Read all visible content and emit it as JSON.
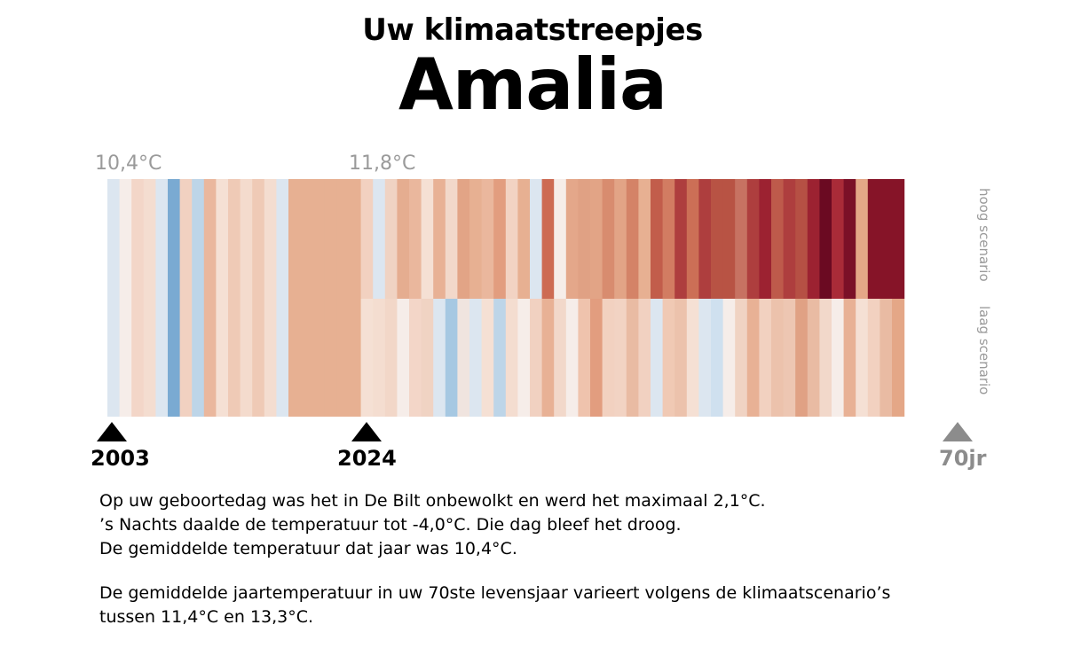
{
  "header": {
    "subtitle": "Uw klimaatstreepjes",
    "name": "Amalia"
  },
  "labels": {
    "temp_birth": "10,4°C",
    "temp_now": "11,8°C",
    "high_scenario": "hoog scenario",
    "low_scenario": "laag scenario",
    "year_birth": "2003",
    "year_now": "2024",
    "age_end": "70jr"
  },
  "text": {
    "line1": "Op uw geboortedag was het in De Bilt onbewolkt en werd het maximaal 2,1°C.",
    "line2": "’s Nachts daalde de temperatuur tot -4,0°C. Die dag bleef het droog.",
    "line3": "De gemiddelde temperatuur dat jaar was 10,4°C.",
    "line4": "De gemiddelde jaartemperatuur in uw 70ste levensjaar varieert volgens de klimaatscenario’s",
    "line5": "tussen 11,4°C en 13,3°C."
  },
  "colors": {
    "triangle_past": "#000000",
    "triangle_future": "#8c8c8c",
    "label_grey": "#9a9a9a"
  },
  "chart_data": {
    "type": "heatmap",
    "description_scale": "annual mean temperature stripes",
    "past": {
      "start_year": 2003,
      "end_year": 2024,
      "colors": [
        "#dce6f0",
        "#f6ede9",
        "#f3d6c8",
        "#f4ddd0",
        "#dce6f0",
        "#7aaad2",
        "#f1d1c1",
        "#bdd5e8",
        "#eab79d",
        "#f5e0d4",
        "#efcab6",
        "#f4dbcd",
        "#efcab6",
        "#f4ddd0",
        "#dce6f0",
        "#e7b092",
        "#e7b092",
        "#e7b092",
        "#e7b092",
        "#e7b092",
        "#e7b092"
      ]
    },
    "future_high": {
      "label": "hoog scenario",
      "colors": [
        "#f2d1c0",
        "#dce6f0",
        "#f0d3c3",
        "#e5ad90",
        "#eab79d",
        "#f5e0d4",
        "#e8b195",
        "#f2d8ca",
        "#e2a486",
        "#e7b092",
        "#eab79d",
        "#e29d7f",
        "#f2d3c3",
        "#e7b092",
        "#dce6f0",
        "#cd6b53",
        "#f6ede9",
        "#e4a78a",
        "#e0a184",
        "#e2a486",
        "#d88c6f",
        "#e2a486",
        "#d48367",
        "#e7b092",
        "#c25d4b",
        "#d27c62",
        "#ae3e3e",
        "#cc6f56",
        "#ae3e3e",
        "#b85344",
        "#b85344",
        "#c77262",
        "#ae3e3e",
        "#9c2231",
        "#be5a4b",
        "#ae3e3e",
        "#b65044",
        "#9c2231",
        "#6b0a22",
        "#a92b38",
        "#7b1027",
        "#e4a787",
        "#861428",
        "#861428",
        "#861428"
      ]
    },
    "future_low": {
      "label": "laag scenario",
      "colors": [
        "#f5e0d4",
        "#f4ddd0",
        "#f2d7c8",
        "#f6ede9",
        "#f3d6c8",
        "#f0d3c3",
        "#dce6f0",
        "#a6c8e2",
        "#f0e4df",
        "#dce6f0",
        "#f5e0d4",
        "#bdd5e8",
        "#f4ddd0",
        "#f6ede9",
        "#f1d1c1",
        "#e8b195",
        "#f2d8ca",
        "#f6ede9",
        "#efc3ad",
        "#e29d7f",
        "#f2d1c0",
        "#f2d3c3",
        "#e9bba3",
        "#f1d1c1",
        "#dce6f0",
        "#f0c9b4",
        "#ecc2ac",
        "#f5e0d4",
        "#dce6f0",
        "#cfe0ef",
        "#f6ede9",
        "#f0d3c3",
        "#e8b195",
        "#f2d1c0",
        "#ecc2ac",
        "#edc6b2",
        "#e0a184",
        "#e9bba3",
        "#f2d8ca",
        "#f6ede9",
        "#e8b195",
        "#f5e0d4",
        "#f2d1c0",
        "#e9bba3",
        "#e4a787"
      ]
    },
    "annotations": [
      "10,4°C",
      "11,8°C"
    ],
    "x_ticks": [
      "2003",
      "2024",
      "70jr"
    ]
  }
}
